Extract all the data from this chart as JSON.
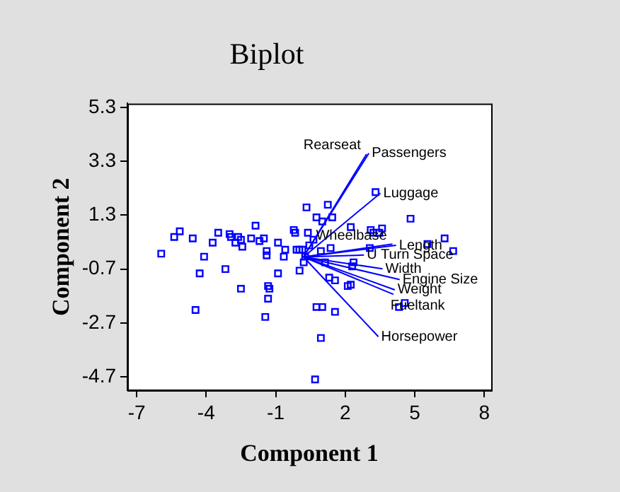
{
  "chart_data": {
    "type": "scatter",
    "title": "Biplot",
    "xlabel": "Component 1",
    "ylabel": "Component 2",
    "xlim": [
      -7.4,
      8.3
    ],
    "ylim": [
      -5.2,
      5.45
    ],
    "xticks": [
      -7,
      -4,
      -1,
      2,
      5,
      8
    ],
    "yticks": [
      -4.7,
      -2.7,
      -0.7,
      1.3,
      3.3,
      5.3
    ],
    "grid": false,
    "legend": false,
    "series": [
      {
        "marker": "square",
        "color": "#0000ff",
        "x": [
          -5.94,
          -5.38,
          -5.14,
          -4.58,
          -4.09,
          -4.28,
          -4.46,
          -3.72,
          -3.48,
          -3.17,
          -2.99,
          -2.93,
          -2.74,
          -2.62,
          -2.5,
          -2.44,
          -2.5,
          -2.06,
          -1.87,
          -1.7,
          -1.51,
          -1.45,
          -1.39,
          -1.39,
          -1.33,
          -1.27,
          -1.33,
          -0.9,
          -0.65,
          -0.59,
          -0.9,
          -0.22,
          -0.16,
          0.03,
          -0.1,
          0.33,
          0.39,
          1.25,
          0.76,
          1.01,
          1.44,
          0.63,
          0.02,
          0.15,
          0.95,
          1.37,
          2.24,
          3.1,
          3.22,
          3.47,
          3.59,
          4.82,
          3.31,
          3.06,
          5.55,
          6.29,
          6.66,
          2.36,
          2.3,
          1.13,
          1.31,
          1.56,
          2.11,
          2.24,
          0.76,
          1.01,
          1.56,
          4.57,
          4.32,
          0.95,
          0.7,
          0.27,
          0.21,
          0.45
        ],
        "values": [
          -0.13,
          0.49,
          0.7,
          0.44,
          -0.24,
          -0.86,
          -2.22,
          0.28,
          0.65,
          -0.7,
          0.6,
          0.49,
          0.28,
          0.49,
          0.39,
          0.13,
          -1.43,
          0.44,
          0.91,
          0.34,
          0.44,
          -2.48,
          -0.03,
          -0.19,
          -1.33,
          -1.43,
          -1.8,
          0.28,
          -0.24,
          0.02,
          -0.86,
          0.75,
          0.65,
          -0.76,
          0.02,
          1.59,
          0.65,
          1.69,
          1.22,
          1.07,
          1.22,
          0.39,
          0.02,
          0.02,
          -0.03,
          0.08,
          0.86,
          0.75,
          0.65,
          0.65,
          0.81,
          1.17,
          2.16,
          0.08,
          0.23,
          0.44,
          -0.03,
          -0.45,
          -0.6,
          -0.45,
          -1.02,
          -1.12,
          -1.33,
          -1.28,
          -2.11,
          -2.11,
          -2.29,
          -1.96,
          -2.11,
          -3.26,
          -4.8,
          -0.24,
          -0.45,
          0.18
        ]
      },
      {
        "type": "line",
        "name": "Rearseat",
        "color": "#0000ff",
        "x": [
          0.2,
          2.92
        ],
        "values": [
          -0.25,
          3.57
        ]
      },
      {
        "type": "line",
        "name": "Passengers",
        "color": "#0000ff",
        "x": [
          0.2,
          3.02
        ],
        "values": [
          -0.25,
          3.6
        ]
      },
      {
        "type": "line",
        "name": "Luggage",
        "color": "#0000ff",
        "x": [
          0.2,
          3.52
        ],
        "values": [
          -0.25,
          2.12
        ]
      },
      {
        "type": "line",
        "name": "Wheelbase",
        "color": "#0000ff",
        "x": [
          0.2,
          4.04
        ],
        "values": [
          -0.25,
          0.23
        ]
      },
      {
        "type": "line",
        "name": "Length",
        "color": "#0000ff",
        "x": [
          0.2,
          4.2
        ],
        "values": [
          -0.25,
          0.18
        ]
      },
      {
        "type": "line",
        "name": "U Turn Space",
        "color": "#0000ff",
        "x": [
          0.2,
          2.81
        ],
        "values": [
          -0.25,
          -0.18
        ]
      },
      {
        "type": "line",
        "name": "Width",
        "color": "#0000ff",
        "x": [
          0.2,
          3.61
        ],
        "values": [
          -0.25,
          -0.69
        ]
      },
      {
        "type": "line",
        "name": "Engine Size",
        "color": "#0000ff",
        "x": [
          0.2,
          4.35
        ],
        "values": [
          -0.25,
          -1.09
        ]
      },
      {
        "type": "line",
        "name": "Weight",
        "color": "#0000ff",
        "x": [
          0.2,
          4.14
        ],
        "values": [
          -0.25,
          -1.47
        ]
      },
      {
        "type": "line",
        "name": "Fueltank",
        "color": "#0000ff",
        "x": [
          0.2,
          4.08
        ],
        "values": [
          -0.25,
          -1.64
        ]
      },
      {
        "type": "line",
        "name": "Horsepower",
        "color": "#0000ff",
        "x": [
          0.2,
          3.43
        ],
        "values": [
          -0.25,
          -3.21
        ]
      }
    ]
  }
}
